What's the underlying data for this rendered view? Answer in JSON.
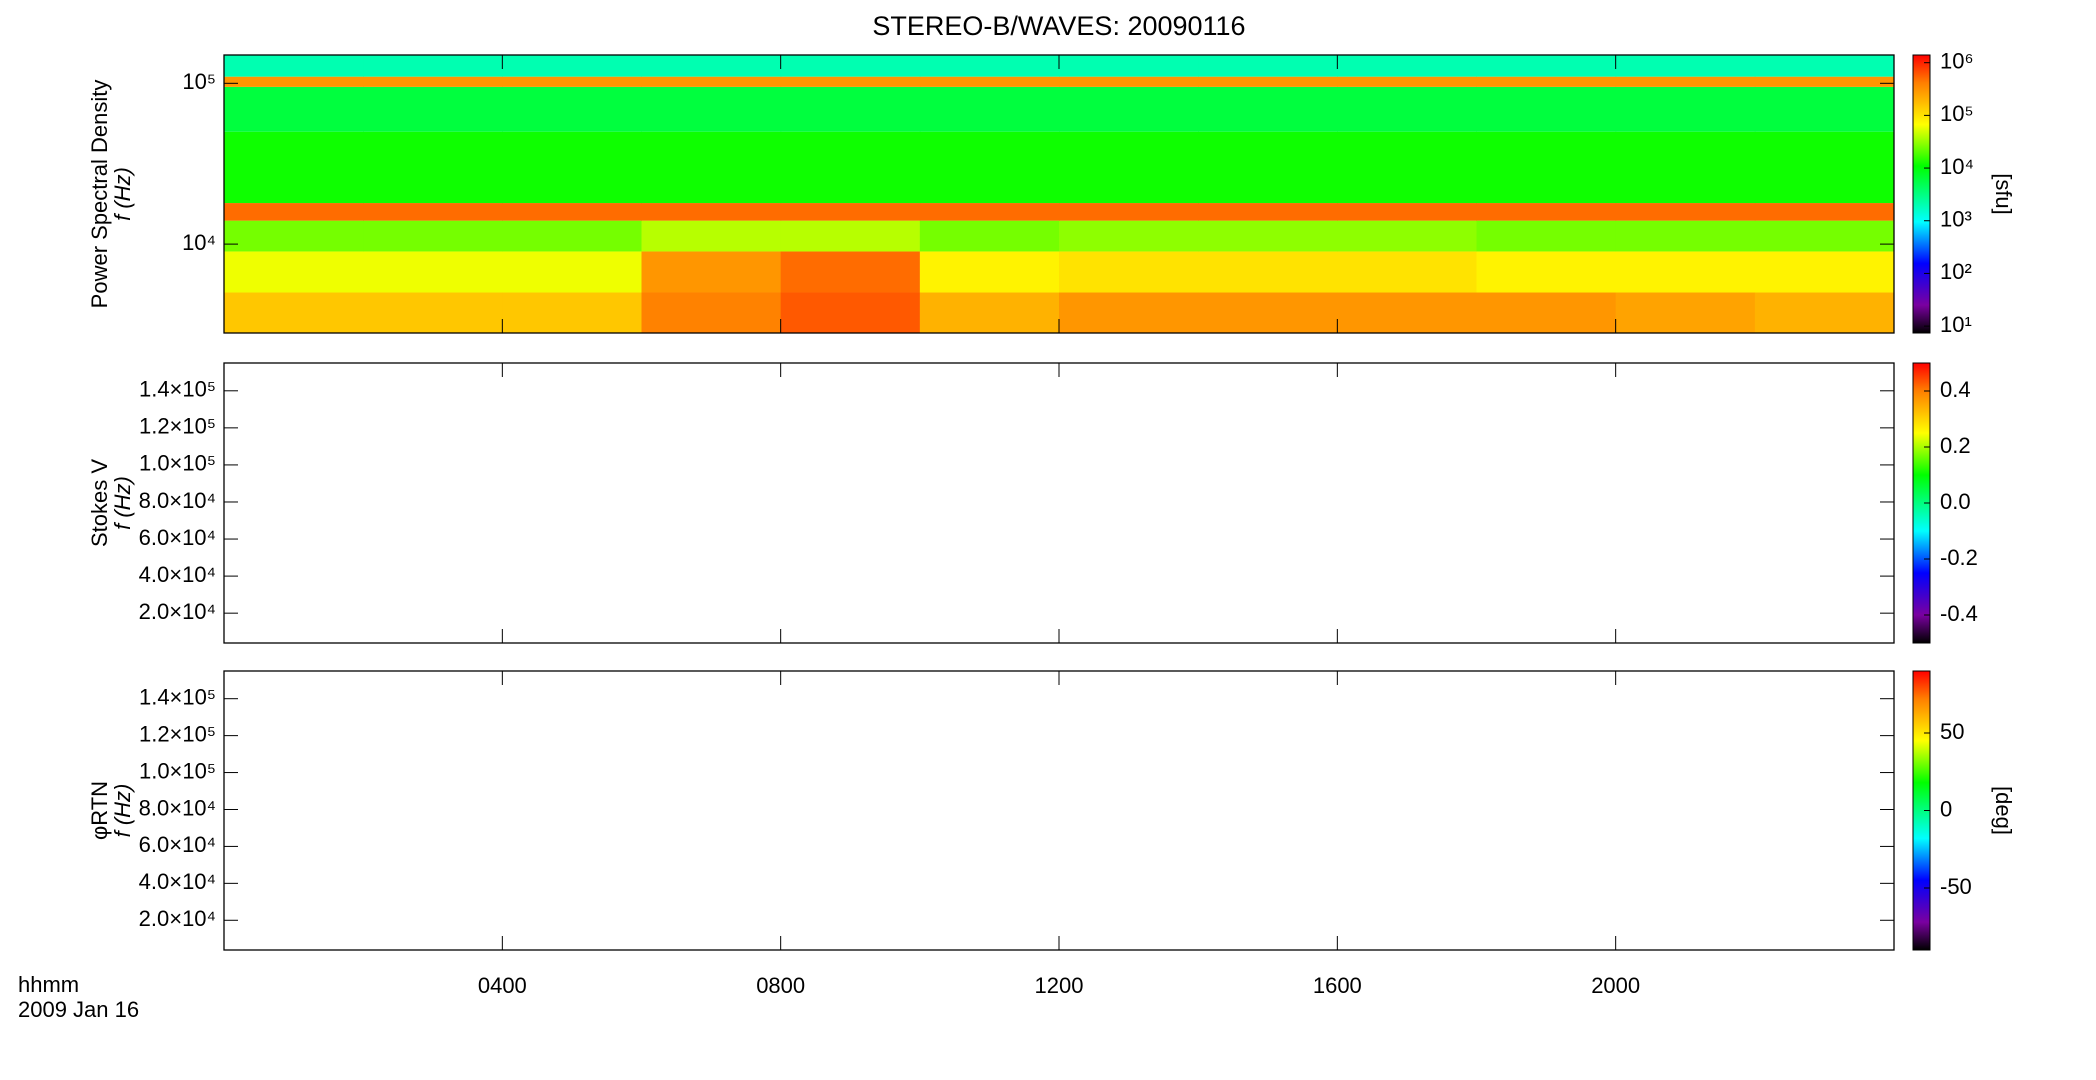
{
  "chart_data": [
    {
      "type": "heatmap",
      "title": "STEREO-B/WAVES: 20090116",
      "ylabel": "Power Spectral Density",
      "ylabel2": "f (Hz)",
      "log_y": true,
      "ylim": [
        2800,
        150000
      ],
      "yticks": [
        {
          "value": 10000,
          "label": "10⁴"
        },
        {
          "value": 100000,
          "label": "10⁵"
        }
      ],
      "x_edges": [
        0,
        2,
        4,
        6,
        8,
        10,
        12,
        14,
        16,
        18,
        20,
        22,
        24
      ],
      "y_edges": [
        2800,
        5000,
        9000,
        14000,
        18000,
        50000,
        95000,
        110000,
        150000
      ],
      "z": [
        [
          150000,
          150000,
          150000,
          400000,
          600000,
          200000,
          300000,
          300000,
          300000,
          300000,
          250000,
          200000
        ],
        [
          60000,
          60000,
          60000,
          300000,
          500000,
          80000,
          100000,
          100000,
          100000,
          80000,
          80000,
          80000
        ],
        [
          25000,
          25000,
          25000,
          40000,
          40000,
          25000,
          30000,
          30000,
          30000,
          25000,
          25000,
          25000
        ],
        [
          500000,
          500000,
          500000,
          500000,
          500000,
          500000,
          500000,
          500000,
          500000,
          500000,
          500000,
          500000
        ],
        [
          12000,
          12000,
          12000,
          12000,
          12000,
          12000,
          12000,
          12000,
          12000,
          12000,
          12000,
          12000
        ],
        [
          6000,
          6000,
          6000,
          6000,
          6000,
          6000,
          6000,
          6000,
          6000,
          6000,
          6000,
          6000
        ],
        [
          300000,
          300000,
          300000,
          300000,
          300000,
          300000,
          300000,
          300000,
          300000,
          300000,
          300000,
          300000
        ],
        [
          2000,
          2000,
          2000,
          2000,
          2000,
          2000,
          2000,
          2000,
          2000,
          2000,
          2000,
          2000
        ]
      ],
      "colorbar": {
        "log": true,
        "lim": [
          7.4,
          1400000
        ],
        "label": "[sfu]",
        "ticks": [
          {
            "value": 10,
            "label": "10¹"
          },
          {
            "value": 100,
            "label": "10²"
          },
          {
            "value": 1000,
            "label": "10³"
          },
          {
            "value": 10000,
            "label": "10⁴"
          },
          {
            "value": 100000,
            "label": "10⁵"
          },
          {
            "value": 1000000,
            "label": "10⁶"
          }
        ]
      }
    },
    {
      "type": "heatmap",
      "ylabel": "Stokes V",
      "ylabel2": "f (Hz)",
      "log_y": false,
      "ylim": [
        3900,
        155000
      ],
      "yticks": [
        {
          "value": 20000,
          "label": "2.0×10⁴"
        },
        {
          "value": 40000,
          "label": "4.0×10⁴"
        },
        {
          "value": 60000,
          "label": "6.0×10⁴"
        },
        {
          "value": 80000,
          "label": "8.0×10⁴"
        },
        {
          "value": 100000,
          "label": "1.0×10⁵"
        },
        {
          "value": 120000,
          "label": "1.2×10⁵"
        },
        {
          "value": 140000,
          "label": "1.4×10⁵"
        }
      ],
      "colorbar": {
        "log": false,
        "lim": [
          -0.5,
          0.5
        ],
        "ticks": [
          {
            "value": -0.4,
            "label": "-0.4"
          },
          {
            "value": -0.2,
            "label": "-0.2"
          },
          {
            "value": 0,
            "label": "0.0"
          },
          {
            "value": 0.2,
            "label": "0.2"
          },
          {
            "value": 0.4,
            "label": "0.4"
          }
        ]
      }
    },
    {
      "type": "heatmap",
      "ylabel": "φRTN",
      "ylabel2": "f (Hz)",
      "log_y": false,
      "ylim": [
        3900,
        155000
      ],
      "yticks": [
        {
          "value": 20000,
          "label": "2.0×10⁴"
        },
        {
          "value": 40000,
          "label": "4.0×10⁴"
        },
        {
          "value": 60000,
          "label": "6.0×10⁴"
        },
        {
          "value": 80000,
          "label": "8.0×10⁴"
        },
        {
          "value": 100000,
          "label": "1.0×10⁵"
        },
        {
          "value": 120000,
          "label": "1.2×10⁵"
        },
        {
          "value": 140000,
          "label": "1.4×10⁵"
        }
      ],
      "colorbar": {
        "log": false,
        "lim": [
          -90,
          90
        ],
        "label": "[deg]",
        "ticks": [
          -50,
          0,
          50
        ]
      },
      "xlim": [
        0,
        24
      ],
      "xlabel": "hhmm",
      "date": "2009 Jan 16",
      "xticks": [
        {
          "value": 4,
          "label": "0400"
        },
        {
          "value": 8,
          "label": "0800"
        },
        {
          "value": 12,
          "label": "1200"
        },
        {
          "value": 16,
          "label": "1600"
        },
        {
          "value": 20,
          "label": "2000"
        }
      ]
    }
  ]
}
